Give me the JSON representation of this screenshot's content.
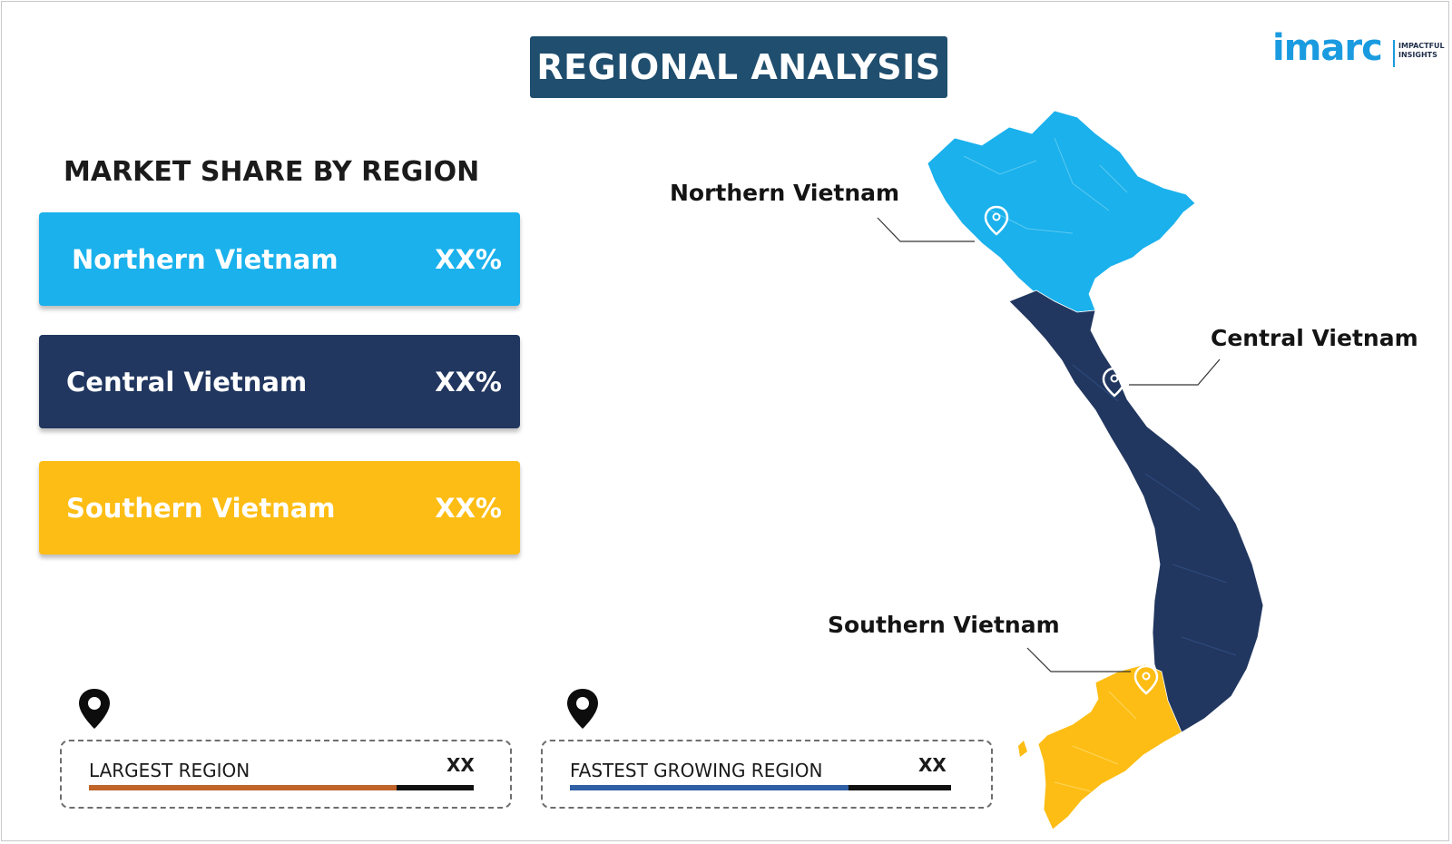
{
  "header": {
    "title": "REGIONAL ANALYSIS"
  },
  "logo": {
    "word": "imarc",
    "tagline_line1": "IMPACTFUL",
    "tagline_line2": "INSIGHTS"
  },
  "market_share": {
    "heading": "MARKET SHARE BY REGION",
    "regions": [
      {
        "name": "Northern Vietnam",
        "value": "XX%",
        "color": "#1ab1ec"
      },
      {
        "name": "Central Vietnam",
        "value": "XX%",
        "color": "#213760"
      },
      {
        "name": "Southern Vietnam",
        "value": "XX%",
        "color": "#fdbd14"
      }
    ]
  },
  "map": {
    "labels": {
      "north": "Northern Vietnam",
      "central": "Central Vietnam",
      "south": "Southern Vietnam"
    },
    "colors": {
      "north": "#1ab1ec",
      "central": "#213760",
      "south": "#fdbd14"
    }
  },
  "stats": {
    "largest": {
      "label": "LARGEST REGION",
      "value": "XX",
      "fill_percent": 80,
      "fill_color": "#c0642a"
    },
    "fastest": {
      "label": "FASTEST  GROWING REGION",
      "value": "XX",
      "fill_percent": 73,
      "fill_color": "#2f5fa4"
    }
  }
}
